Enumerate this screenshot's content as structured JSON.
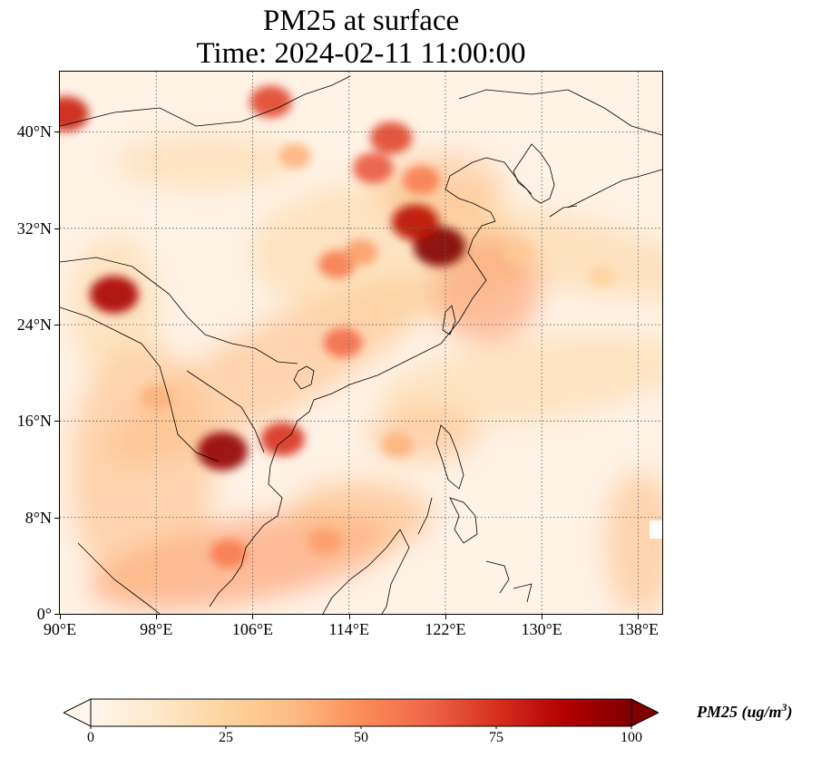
{
  "title": {
    "line1": "PM25 at surface",
    "line2": "Time: 2024-02-11 11:00:00"
  },
  "axes": {
    "lon_ticks": [
      "90°E",
      "98°E",
      "106°E",
      "114°E",
      "122°E",
      "130°E",
      "138°E"
    ],
    "lat_ticks": [
      "0°",
      "8°N",
      "16°N",
      "24°N",
      "32°N",
      "40°N"
    ],
    "lon_values": [
      90,
      98,
      106,
      114,
      122,
      130,
      138
    ],
    "lat_values": [
      0,
      8,
      16,
      24,
      32,
      40
    ],
    "lon_range": [
      90,
      140
    ],
    "lat_range": [
      0,
      45
    ],
    "gridlines": "dotted"
  },
  "colorbar": {
    "title_main": "PM25 (ug/m",
    "title_sup": "3",
    "title_close": ")",
    "tick_labels": [
      "0",
      "25",
      "50",
      "75",
      "100"
    ],
    "tick_values": [
      0,
      25,
      50,
      75,
      100
    ],
    "range": [
      0,
      100
    ],
    "extend": "both",
    "colormap": "OrRd",
    "colors": [
      "#fff7ec",
      "#fee8c8",
      "#fdd49e",
      "#fdbb84",
      "#fc8d59",
      "#ef6548",
      "#d7301f",
      "#b30000",
      "#7f0000"
    ]
  },
  "chart_data": {
    "type": "heatmap",
    "title": "PM25 at surface\nTime: 2024-02-11 11:00:00",
    "variable": "PM25",
    "units": "ug/m3",
    "x_range": [
      90,
      140
    ],
    "y_range": [
      0,
      45
    ],
    "value_range": [
      0,
      100
    ],
    "hotspots": [
      {
        "lon": 103.5,
        "lat": 13.5,
        "value": 95
      },
      {
        "lon": 121.5,
        "lat": 30.5,
        "value": 100
      },
      {
        "lon": 119.5,
        "lat": 32.5,
        "value": 85
      },
      {
        "lon": 117.5,
        "lat": 39.5,
        "value": 70
      },
      {
        "lon": 116,
        "lat": 37,
        "value": 65
      },
      {
        "lon": 94.5,
        "lat": 26.5,
        "value": 90
      },
      {
        "lon": 90.5,
        "lat": 41.5,
        "value": 80
      },
      {
        "lon": 107.5,
        "lat": 42.5,
        "value": 70
      },
      {
        "lon": 108.5,
        "lat": 14.5,
        "value": 75
      },
      {
        "lon": 104,
        "lat": 5,
        "value": 55
      },
      {
        "lon": 112,
        "lat": 6,
        "value": 45
      },
      {
        "lon": 113.5,
        "lat": 22.5,
        "value": 60
      },
      {
        "lon": 120,
        "lat": 36,
        "value": 55
      },
      {
        "lon": 113,
        "lat": 29,
        "value": 55
      },
      {
        "lon": 115,
        "lat": 30,
        "value": 45
      },
      {
        "lon": 109.5,
        "lat": 38,
        "value": 40
      },
      {
        "lon": 128,
        "lat": 30,
        "value": 30
      },
      {
        "lon": 135,
        "lat": 28,
        "value": 25
      },
      {
        "lon": 118,
        "lat": 14,
        "value": 40
      },
      {
        "lon": 98,
        "lat": 18,
        "value": 40
      }
    ]
  }
}
